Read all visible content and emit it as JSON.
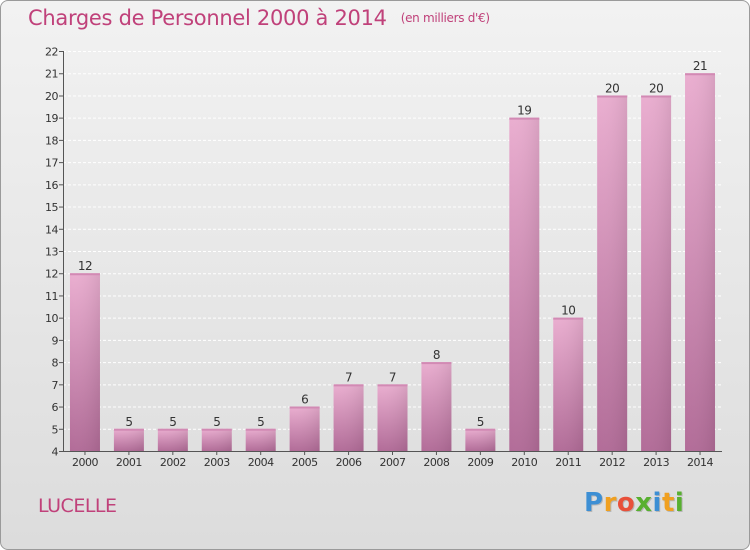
{
  "title": "Charges de Personnel 2000 à 2014",
  "subtitle": "(en milliers d'€)",
  "commune": "LUCELLE",
  "logo": {
    "text": "Proxiti",
    "letters": [
      "P",
      "r",
      "o",
      "x",
      "i",
      "t",
      "i"
    ],
    "colors": [
      "#3d8fd4",
      "#f0a020",
      "#e8503a",
      "#58b030",
      "#3d8fd4",
      "#f0a020",
      "#58b030"
    ]
  },
  "colors": {
    "accent": "#c0417a",
    "bar_light": "#eaaed0",
    "bar_dark": "#b26c98",
    "axis": "#555555",
    "grid": "#ffffff"
  },
  "chart_data": {
    "type": "bar",
    "title": "Charges de Personnel 2000 à 2014",
    "subtitle": "(en milliers d'€)",
    "categories": [
      "2000",
      "2001",
      "2002",
      "2003",
      "2004",
      "2005",
      "2006",
      "2007",
      "2008",
      "2009",
      "2010",
      "2011",
      "2012",
      "2013",
      "2014"
    ],
    "values": [
      12,
      5,
      5,
      5,
      5,
      6,
      7,
      7,
      8,
      5,
      19,
      10,
      20,
      20,
      21
    ],
    "ylim": [
      4,
      22
    ],
    "yticks": [
      4,
      5,
      6,
      7,
      8,
      9,
      10,
      11,
      12,
      13,
      14,
      15,
      16,
      17,
      18,
      19,
      20,
      21,
      22
    ],
    "grid": true,
    "data_labels": true
  }
}
